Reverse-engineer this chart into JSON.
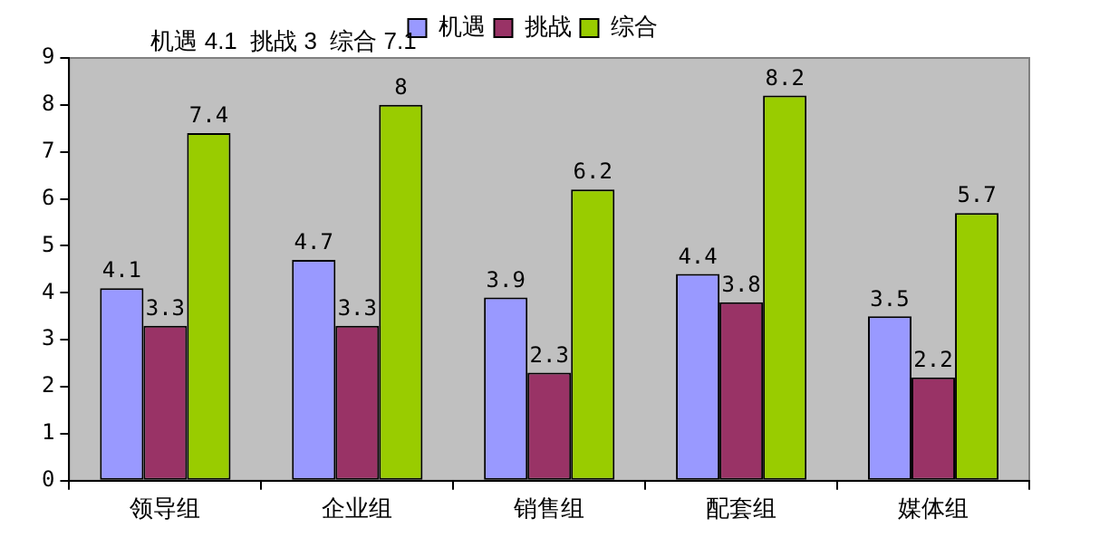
{
  "chart_data": {
    "type": "bar",
    "categories": [
      "领导组",
      "企业组",
      "销售组",
      "配套组",
      "媒体组"
    ],
    "series": [
      {
        "name": "机遇",
        "color": "#9999ff",
        "values": [
          4.1,
          4.7,
          3.9,
          4.4,
          3.5
        ]
      },
      {
        "name": "挑战",
        "color": "#993366",
        "values": [
          3.3,
          3.3,
          2.3,
          3.8,
          2.2
        ]
      },
      {
        "name": "综合",
        "color": "#99cc00",
        "values": [
          7.4,
          8,
          6.2,
          8.2,
          5.7
        ]
      }
    ],
    "ylim": [
      0,
      9
    ],
    "yticks": [
      0,
      1,
      2,
      3,
      4,
      5,
      6,
      7,
      8,
      9
    ],
    "grid": false,
    "legend": "top",
    "data_labels": true,
    "annotations": [
      "机遇 4.1  挑战 3  综合 7.1"
    ]
  }
}
